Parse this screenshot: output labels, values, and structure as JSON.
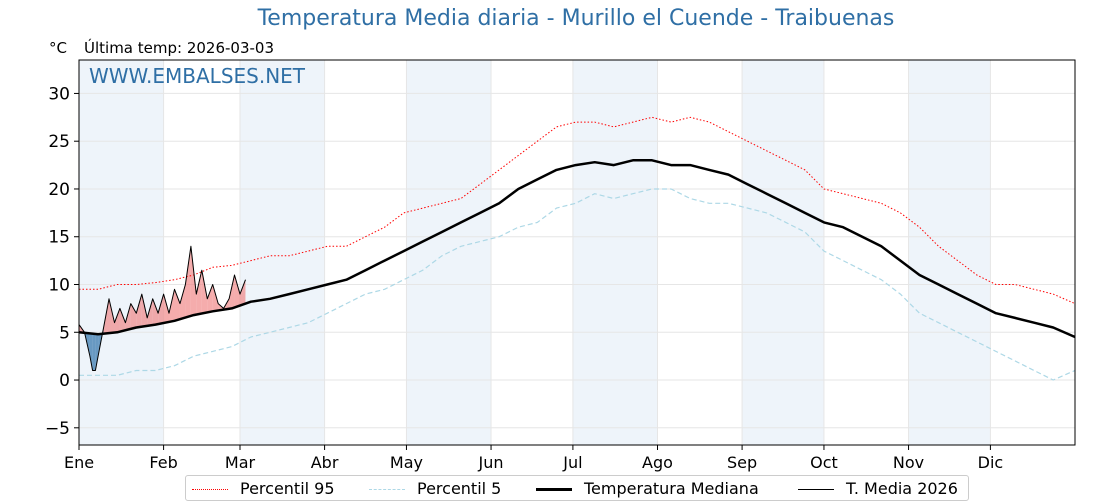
{
  "title": "Temperatura Media diaria - Murillo el Cuende - Traibuenas",
  "unit_label": "°C",
  "last_temp_label": "Última temp: 2026-03-03",
  "watermark": "WWW.EMBALSES.NET",
  "legend": {
    "p95": "Percentil 95",
    "p5": "Percentil 5",
    "median": "Temperatura Mediana",
    "current": "T. Media 2026"
  },
  "colors": {
    "p95": "#ff0000",
    "p5": "#add8e6",
    "median": "#000000",
    "current": "#000000",
    "above_fill": "#f08080",
    "below_fill": "#4682b4",
    "band": "#eef4fa",
    "grid": "#e6e6e6",
    "title": "#2f6fa5"
  },
  "chart_data": {
    "type": "line",
    "x_unit": "day of year",
    "xlim": [
      1,
      366
    ],
    "ylim": [
      -6.8,
      33.5
    ],
    "yticks": [
      -5,
      0,
      5,
      10,
      15,
      20,
      25,
      30
    ],
    "ytick_labels": [
      "−5",
      "0",
      "5",
      "10",
      "15",
      "20",
      "25",
      "30"
    ],
    "months": [
      {
        "label": "Ene",
        "day": 1
      },
      {
        "label": "Feb",
        "day": 32
      },
      {
        "label": "Mar",
        "day": 60
      },
      {
        "label": "Abr",
        "day": 91
      },
      {
        "label": "May",
        "day": 121
      },
      {
        "label": "Jun",
        "day": 152
      },
      {
        "label": "Jul",
        "day": 182
      },
      {
        "label": "Ago",
        "day": 213
      },
      {
        "label": "Sep",
        "day": 244
      },
      {
        "label": "Oct",
        "day": 274
      },
      {
        "label": "Nov",
        "day": 305
      },
      {
        "label": "Dic",
        "day": 335
      }
    ],
    "shaded_months": [
      "Ene",
      "Mar",
      "May",
      "Jul",
      "Sep",
      "Nov"
    ],
    "grid": true,
    "legend_position": "bottom",
    "series": [
      {
        "name": "Percentil 95",
        "style": "dotted",
        "x": [
          1,
          8,
          15,
          22,
          29,
          36,
          43,
          50,
          57,
          64,
          71,
          78,
          85,
          92,
          99,
          106,
          113,
          120,
          127,
          134,
          141,
          148,
          155,
          162,
          169,
          176,
          183,
          190,
          197,
          204,
          211,
          218,
          225,
          232,
          239,
          246,
          253,
          260,
          267,
          274,
          281,
          288,
          295,
          302,
          309,
          316,
          323,
          330,
          337,
          344,
          351,
          358,
          366
        ],
        "values": [
          9.5,
          9.5,
          10.0,
          10.0,
          10.2,
          10.5,
          11.0,
          11.8,
          12.0,
          12.5,
          13.0,
          13.0,
          13.5,
          14.0,
          14.0,
          15.0,
          16.0,
          17.5,
          18.0,
          18.5,
          19.0,
          20.5,
          22.0,
          23.5,
          25.0,
          26.5,
          27.0,
          27.0,
          26.5,
          27.0,
          27.5,
          27.0,
          27.5,
          27.0,
          26.0,
          25.0,
          24.0,
          23.0,
          22.0,
          20.0,
          19.5,
          19.0,
          18.5,
          17.5,
          16.0,
          14.0,
          12.5,
          11.0,
          10.0,
          10.0,
          9.5,
          9.0,
          8.0
        ]
      },
      {
        "name": "Percentil 5",
        "style": "dashed",
        "x": [
          1,
          8,
          15,
          22,
          29,
          36,
          43,
          50,
          57,
          64,
          71,
          78,
          85,
          92,
          99,
          106,
          113,
          120,
          127,
          134,
          141,
          148,
          155,
          162,
          169,
          176,
          183,
          190,
          197,
          204,
          211,
          218,
          225,
          232,
          239,
          246,
          253,
          260,
          267,
          274,
          281,
          288,
          295,
          302,
          309,
          316,
          323,
          330,
          337,
          344,
          351,
          358,
          366
        ],
        "values": [
          0.5,
          0.5,
          0.5,
          1.0,
          1.0,
          1.5,
          2.5,
          3.0,
          3.5,
          4.5,
          5.0,
          5.5,
          6.0,
          7.0,
          8.0,
          9.0,
          9.5,
          10.5,
          11.5,
          13.0,
          14.0,
          14.5,
          15.0,
          16.0,
          16.5,
          18.0,
          18.5,
          19.5,
          19.0,
          19.5,
          20.0,
          20.0,
          19.0,
          18.5,
          18.5,
          18.0,
          17.5,
          16.5,
          15.5,
          13.5,
          12.5,
          11.5,
          10.5,
          9.0,
          7.0,
          6.0,
          5.0,
          4.0,
          3.0,
          2.0,
          1.0,
          0.0,
          1.0
        ]
      },
      {
        "name": "Temperatura Mediana",
        "style": "solid-thick",
        "x": [
          1,
          8,
          15,
          22,
          29,
          36,
          43,
          50,
          57,
          64,
          71,
          78,
          85,
          92,
          99,
          106,
          113,
          120,
          127,
          134,
          141,
          148,
          155,
          162,
          169,
          176,
          183,
          190,
          197,
          204,
          211,
          218,
          225,
          232,
          239,
          246,
          253,
          260,
          267,
          274,
          281,
          288,
          295,
          302,
          309,
          316,
          323,
          330,
          337,
          344,
          351,
          358,
          366
        ],
        "values": [
          5.0,
          4.8,
          5.0,
          5.5,
          5.8,
          6.2,
          6.8,
          7.2,
          7.5,
          8.2,
          8.5,
          9.0,
          9.5,
          10.0,
          10.5,
          11.5,
          12.5,
          13.5,
          14.5,
          15.5,
          16.5,
          17.5,
          18.5,
          20.0,
          21.0,
          22.0,
          22.5,
          22.8,
          22.5,
          23.0,
          23.0,
          22.5,
          22.5,
          22.0,
          21.5,
          20.5,
          19.5,
          18.5,
          17.5,
          16.5,
          16.0,
          15.0,
          14.0,
          12.5,
          11.0,
          10.0,
          9.0,
          8.0,
          7.0,
          6.5,
          6.0,
          5.5,
          4.5
        ]
      },
      {
        "name": "T. Media 2026",
        "style": "solid-thin",
        "x": [
          1,
          3,
          5,
          6,
          7,
          8,
          10,
          12,
          14,
          16,
          18,
          20,
          22,
          24,
          26,
          28,
          30,
          32,
          34,
          36,
          38,
          40,
          42,
          44,
          46,
          48,
          50,
          52,
          54,
          56,
          58,
          60,
          62
        ],
        "values": [
          5.8,
          5.0,
          2.5,
          1.0,
          1.0,
          2.5,
          5.5,
          8.5,
          6.0,
          7.5,
          6.0,
          8.0,
          7.0,
          9.0,
          6.5,
          8.5,
          7.0,
          9.0,
          7.0,
          9.5,
          8.0,
          10.0,
          14.0,
          9.0,
          11.5,
          8.5,
          10.0,
          8.0,
          7.5,
          8.5,
          11.0,
          9.0,
          10.5
        ]
      }
    ]
  }
}
